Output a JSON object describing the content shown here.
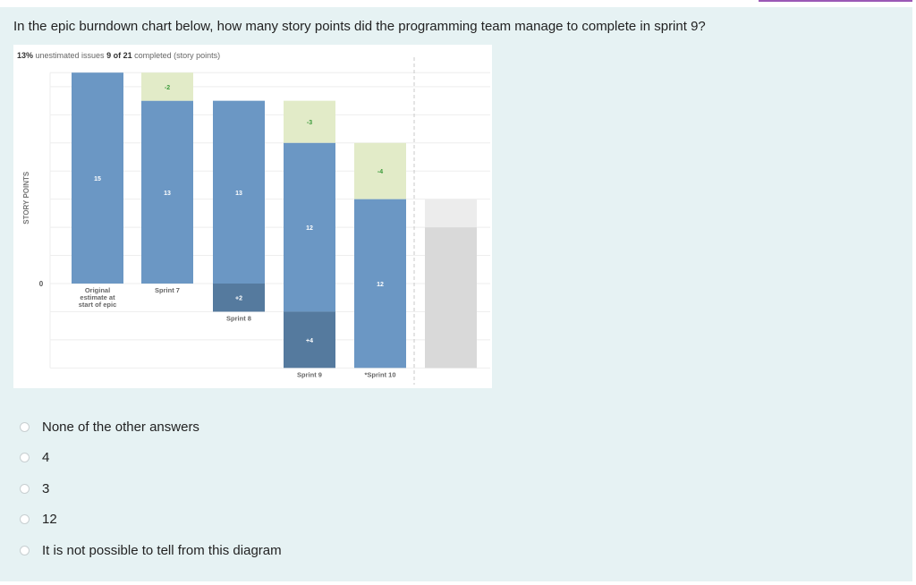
{
  "question": "In the epic burndown chart below, how many story points did the programming team manage to complete in sprint 9?",
  "chart_data": {
    "type": "bar",
    "stats": {
      "unestimated_value": "13%",
      "unestimated_label": "unestimated issues",
      "completed_value": "9 of 21",
      "completed_label": "completed (story points)"
    },
    "ylabel": "STORY POINTS",
    "ytick": "0",
    "ylim": [
      -6,
      15
    ],
    "colors": {
      "remaining": "#6b97c4",
      "completed": "#e2ebc8",
      "added": "#557a9e",
      "forecast_light": "#ececec",
      "forecast": "#d9d9d9",
      "completed_text": "#3a9a3a"
    },
    "categories": [
      "Original estimate at start of epic",
      "Sprint 7",
      "Sprint 8",
      "Sprint 9",
      "*Sprint 10",
      ""
    ],
    "bars": [
      {
        "category": "Original estimate at start of epic",
        "segments": [
          {
            "kind": "remaining",
            "from": 0,
            "to": 15,
            "label": "15"
          }
        ]
      },
      {
        "category": "Sprint 7",
        "segments": [
          {
            "kind": "remaining",
            "from": 0,
            "to": 13,
            "label": "13"
          },
          {
            "kind": "completed",
            "from": 13,
            "to": 15,
            "label": "-2"
          }
        ]
      },
      {
        "category": "Sprint 8",
        "segments": [
          {
            "kind": "remaining",
            "from": 0,
            "to": 13,
            "label": "13"
          },
          {
            "kind": "added",
            "from": -2,
            "to": 0,
            "label": "+2"
          }
        ]
      },
      {
        "category": "Sprint 9",
        "segments": [
          {
            "kind": "completed",
            "from": 10,
            "to": 13,
            "label": "-3"
          },
          {
            "kind": "remaining",
            "from": -2,
            "to": 10,
            "label": "12"
          },
          {
            "kind": "added",
            "from": -6,
            "to": -2,
            "label": "+4"
          }
        ]
      },
      {
        "category": "*Sprint 10",
        "segments": [
          {
            "kind": "completed",
            "from": 6,
            "to": 10,
            "label": "-4"
          },
          {
            "kind": "remaining",
            "from": -6,
            "to": 6,
            "label": "12"
          }
        ]
      },
      {
        "category": "",
        "segments": [
          {
            "kind": "forecast_light",
            "from": 4,
            "to": 6,
            "label": ""
          },
          {
            "kind": "forecast",
            "from": -6,
            "to": 4,
            "label": ""
          }
        ]
      }
    ]
  },
  "options": [
    {
      "label": "None of the other answers"
    },
    {
      "label": "4"
    },
    {
      "label": "3"
    },
    {
      "label": "12"
    },
    {
      "label": "It is not possible to tell from this diagram"
    }
  ]
}
